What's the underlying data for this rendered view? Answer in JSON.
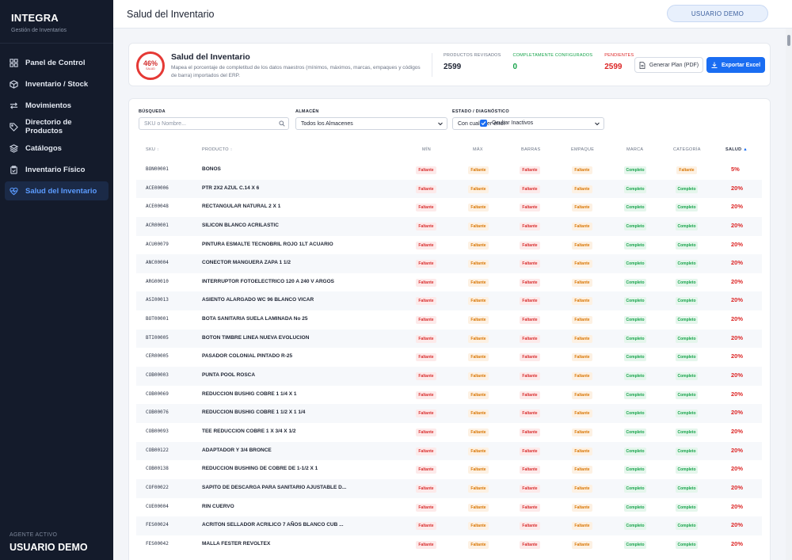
{
  "app": {
    "name": "INTEGRA",
    "subtitle": "Gestión de Inventarios"
  },
  "sidebar": {
    "items": [
      {
        "label": "Panel de Control",
        "icon": "dashboard-icon"
      },
      {
        "label": "Inventario / Stock",
        "icon": "box-icon"
      },
      {
        "label": "Movimientos",
        "icon": "transfer-arrows-icon"
      },
      {
        "label": "Directorio de Productos",
        "icon": "tag-icon"
      },
      {
        "label": "Catálogos",
        "icon": "layers-icon"
      },
      {
        "label": "Inventario Físico",
        "icon": "clipboard-icon"
      },
      {
        "label": "Salud del Inventario",
        "icon": "health-heart-icon",
        "active": true
      }
    ],
    "agent_label": "AGENTE ACTIVO",
    "agent_name": "USUARIO DEMO"
  },
  "topbar": {
    "title": "Salud del Inventario",
    "user": "USUARIO DEMO"
  },
  "summary": {
    "score": "46%",
    "score_sub": "SALUD",
    "title": "Salud del Inventario",
    "description": "Mapea el porcentaje de completitud de los datos maestros (mínimos, máximos, marcas, empaques y códigos de barra) importados del ERP.",
    "stats": [
      {
        "label": "PRODUCTOS REVISADOS",
        "value": "2599",
        "color": "#6b7485",
        "value_color": "#1e2433"
      },
      {
        "label": "COMPLETAMENTE CONFIGURADOS",
        "value": "0",
        "color": "#16a34a",
        "value_color": "#16a34a"
      },
      {
        "label": "PENDIENTES",
        "value": "2599",
        "color": "#dc2626",
        "value_color": "#dc2626"
      }
    ],
    "btn_pdf": "Generar Plan (PDF)",
    "btn_excel": "Exportar Excel"
  },
  "filters": {
    "search_label": "BÚSQUEDA",
    "search_placeholder": "SKU o Nombre...",
    "warehouse_label": "ALMACÉN",
    "warehouse_value": "Todos los Almacenes",
    "status_label": "ESTADO / DIAGNÓSTICO",
    "status_value": "Con cualquier error",
    "hide_inactive": "Ocultar Inactivos"
  },
  "table": {
    "headers": {
      "sku": "SKU",
      "product": "PRODUCTO",
      "min": "MÍN",
      "max": "MÁX",
      "barras": "BARRAS",
      "empaque": "EMPAQUE",
      "marca": "MARCA",
      "categoria": "CATEGORÍA",
      "salud": "SALUD"
    },
    "rows": [
      {
        "sku": "BON00001",
        "product": "BONOS",
        "min": "Faltante",
        "max": "Faltante",
        "barras": "Faltante",
        "empaque": "Faltante",
        "marca": "Completo",
        "categoria": "Faltante",
        "salud": "5%"
      },
      {
        "sku": "ACE00006",
        "product": "PTR 2X2 AZUL C.14 X 6",
        "min": "Faltante",
        "max": "Faltante",
        "barras": "Faltante",
        "empaque": "Faltante",
        "marca": "Completo",
        "categoria": "Completo",
        "salud": "20%"
      },
      {
        "sku": "ACE00048",
        "product": "RECTANGULAR NATURAL 2 X 1",
        "min": "Faltante",
        "max": "Faltante",
        "barras": "Faltante",
        "empaque": "Faltante",
        "marca": "Completo",
        "categoria": "Completo",
        "salud": "20%"
      },
      {
        "sku": "ACR00001",
        "product": "SILICON BLANCO ACRILASTIC",
        "min": "Faltante",
        "max": "Faltante",
        "barras": "Faltante",
        "empaque": "Faltante",
        "marca": "Completo",
        "categoria": "Completo",
        "salud": "20%"
      },
      {
        "sku": "ACU00079",
        "product": "PINTURA ESMALTE TECNOBRIL ROJO 1LT ACUARIO",
        "min": "Faltante",
        "max": "Faltante",
        "barras": "Faltante",
        "empaque": "Faltante",
        "marca": "Completo",
        "categoria": "Completo",
        "salud": "20%"
      },
      {
        "sku": "ANC00004",
        "product": "CONECTOR MANGUERA ZAPA 1 1/2",
        "min": "Faltante",
        "max": "Faltante",
        "barras": "Faltante",
        "empaque": "Faltante",
        "marca": "Completo",
        "categoria": "Completo",
        "salud": "20%"
      },
      {
        "sku": "ARG00010",
        "product": "INTERRUPTOR FOTOELECTRICO 120 A 240 V ARGOS",
        "min": "Faltante",
        "max": "Faltante",
        "barras": "Faltante",
        "empaque": "Faltante",
        "marca": "Completo",
        "categoria": "Completo",
        "salud": "20%"
      },
      {
        "sku": "ASI00013",
        "product": "ASIENTO ALARGADO WC 96 BLANCO VICAR",
        "min": "Faltante",
        "max": "Faltante",
        "barras": "Faltante",
        "empaque": "Faltante",
        "marca": "Completo",
        "categoria": "Completo",
        "salud": "20%"
      },
      {
        "sku": "BOT00001",
        "product": "BOTA SANITARIA SUELA LAMINADA No 25",
        "min": "Faltante",
        "max": "Faltante",
        "barras": "Faltante",
        "empaque": "Faltante",
        "marca": "Completo",
        "categoria": "Completo",
        "salud": "20%"
      },
      {
        "sku": "BTI00005",
        "product": "BOTON TIMBRE LINEA NUEVA EVOLUCION",
        "min": "Faltante",
        "max": "Faltante",
        "barras": "Faltante",
        "empaque": "Faltante",
        "marca": "Completo",
        "categoria": "Completo",
        "salud": "20%"
      },
      {
        "sku": "CER00005",
        "product": "PASADOR COLONIAL PINTADO R-25",
        "min": "Faltante",
        "max": "Faltante",
        "barras": "Faltante",
        "empaque": "Faltante",
        "marca": "Completo",
        "categoria": "Completo",
        "salud": "20%"
      },
      {
        "sku": "COB00003",
        "product": "PUNTA POOL ROSCA",
        "min": "Faltante",
        "max": "Faltante",
        "barras": "Faltante",
        "empaque": "Faltante",
        "marca": "Completo",
        "categoria": "Completo",
        "salud": "20%"
      },
      {
        "sku": "COB00069",
        "product": "REDUCCION BUSHIG COBRE 1 1/4 X 1",
        "min": "Faltante",
        "max": "Faltante",
        "barras": "Faltante",
        "empaque": "Faltante",
        "marca": "Completo",
        "categoria": "Completo",
        "salud": "20%"
      },
      {
        "sku": "COB00076",
        "product": "REDUCCION BUSHIG COBRE 1 1/2 X 1 1/4",
        "min": "Faltante",
        "max": "Faltante",
        "barras": "Faltante",
        "empaque": "Faltante",
        "marca": "Completo",
        "categoria": "Completo",
        "salud": "20%"
      },
      {
        "sku": "COB00093",
        "product": "TEE REDUCCION COBRE 1 X 3/4 X 1/2",
        "min": "Faltante",
        "max": "Faltante",
        "barras": "Faltante",
        "empaque": "Faltante",
        "marca": "Completo",
        "categoria": "Completo",
        "salud": "20%"
      },
      {
        "sku": "COB00122",
        "product": "ADAPTADOR Y 3/4 BRONCE",
        "min": "Faltante",
        "max": "Faltante",
        "barras": "Faltante",
        "empaque": "Faltante",
        "marca": "Completo",
        "categoria": "Completo",
        "salud": "20%"
      },
      {
        "sku": "COB00138",
        "product": "REDUCCION BUSHING DE COBRE DE 1-1/2 X 1",
        "min": "Faltante",
        "max": "Faltante",
        "barras": "Faltante",
        "empaque": "Faltante",
        "marca": "Completo",
        "categoria": "Completo",
        "salud": "20%"
      },
      {
        "sku": "COF00022",
        "product": "SAPITO DE DESCARGA PARA SANITARIO AJUSTABLE D...",
        "min": "Faltante",
        "max": "Faltante",
        "barras": "Faltante",
        "empaque": "Faltante",
        "marca": "Completo",
        "categoria": "Completo",
        "salud": "20%"
      },
      {
        "sku": "CUE00004",
        "product": "RIN CUERVO",
        "min": "Faltante",
        "max": "Faltante",
        "barras": "Faltante",
        "empaque": "Faltante",
        "marca": "Completo",
        "categoria": "Completo",
        "salud": "20%"
      },
      {
        "sku": "FES00024",
        "product": "ACRITON SELLADOR ACRILICO 7 AÑOS BLANCO CUB ...",
        "min": "Faltante",
        "max": "Faltante",
        "barras": "Faltante",
        "empaque": "Faltante",
        "marca": "Completo",
        "categoria": "Completo",
        "salud": "20%"
      },
      {
        "sku": "FES00042",
        "product": "MALLA FESTER REVOLTEX",
        "min": "Faltante",
        "max": "Faltante",
        "barras": "Faltante",
        "empaque": "Faltante",
        "marca": "Completo",
        "categoria": "Completo",
        "salud": "20%"
      }
    ]
  }
}
